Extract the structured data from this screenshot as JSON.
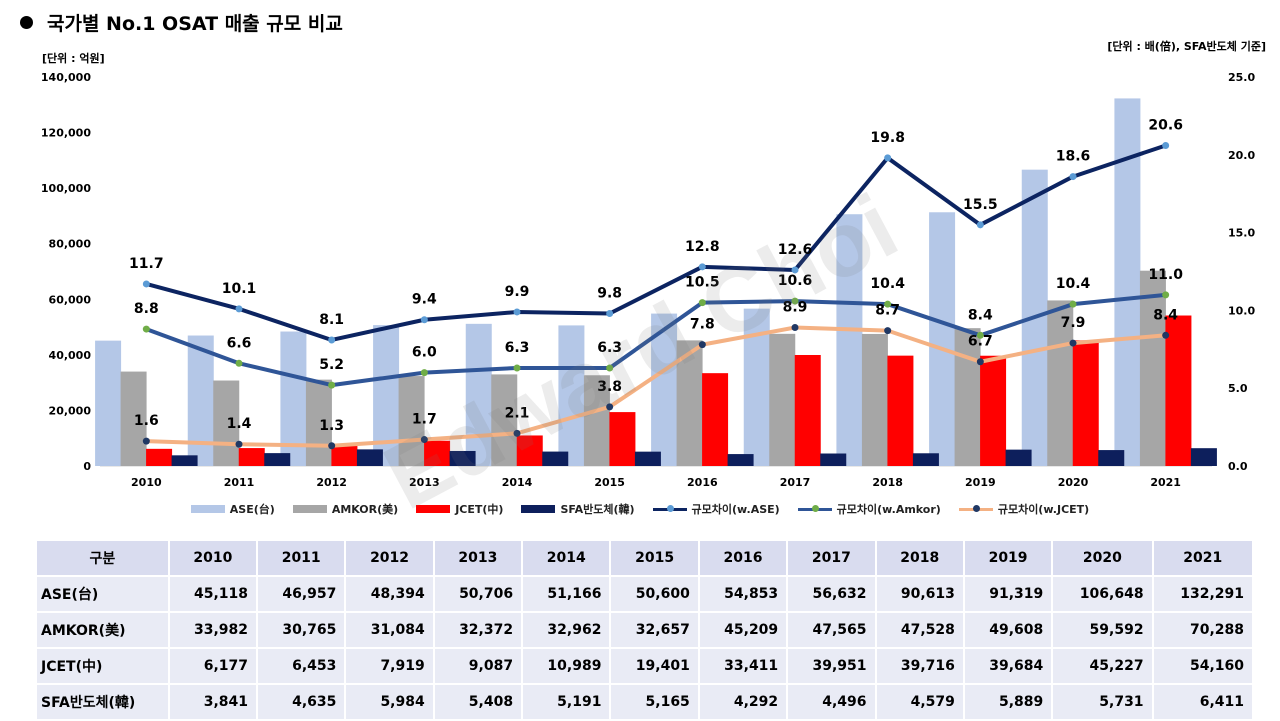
{
  "header": {
    "title": "국가별 No.1 OSAT 매출 규모 비교",
    "unit_left": "[단위 : 억원]",
    "unit_right": "[단위 : 배(倍), SFA반도체 기준]",
    "watermark": "Edward Choi"
  },
  "colors": {
    "ase": "#b4c7e7",
    "amkor": "#a6a6a6",
    "jcet": "#ff0000",
    "sfa": "#0d1f5c",
    "ratio_ase": "#0c2461",
    "ratio_amkor": "#2f5597",
    "ratio_jcet": "#f4b183",
    "marker_ase": "#5b9bd5",
    "marker_amkor": "#70ad47",
    "marker_jcet": "#203864"
  },
  "chart_data": {
    "type": "bar",
    "categories": [
      "2010",
      "2011",
      "2012",
      "2013",
      "2014",
      "2015",
      "2016",
      "2017",
      "2018",
      "2019",
      "2020",
      "2021"
    ],
    "y_left": {
      "min": 0,
      "max": 140000,
      "ticks": [
        "0",
        "20,000",
        "40,000",
        "60,000",
        "80,000",
        "100,000",
        "120,000",
        "140,000"
      ]
    },
    "y_right": {
      "min": 0,
      "max": 25,
      "ticks": [
        "0.0",
        "5.0",
        "10.0",
        "15.0",
        "20.0",
        "25.0"
      ]
    },
    "bar_series": [
      {
        "name": "ASE(台)",
        "values": [
          45118,
          46957,
          48394,
          50706,
          51166,
          50600,
          54853,
          56632,
          90613,
          91319,
          106648,
          132291
        ]
      },
      {
        "name": "AMKOR(美)",
        "values": [
          33982,
          30765,
          31084,
          32372,
          32962,
          32657,
          45209,
          47565,
          47528,
          49608,
          59592,
          70288
        ]
      },
      {
        "name": "JCET(中)",
        "values": [
          6177,
          6453,
          7919,
          9087,
          10989,
          19401,
          33411,
          39951,
          39716,
          39684,
          45227,
          54160
        ]
      },
      {
        "name": "SFA반도체(韓)",
        "values": [
          3841,
          4635,
          5984,
          5408,
          5191,
          5165,
          4292,
          4496,
          4579,
          5889,
          5731,
          6411
        ]
      }
    ],
    "line_series": [
      {
        "name": "규모차이(w.ASE)",
        "values": [
          11.7,
          10.1,
          8.1,
          9.4,
          9.9,
          9.8,
          12.8,
          12.6,
          19.8,
          15.5,
          18.6,
          20.6
        ],
        "labels": [
          "11.7",
          "10.1",
          "8.1",
          "9.4",
          "9.9",
          "9.8",
          "12.8",
          "12.6",
          "19.8",
          "15.5",
          "18.6",
          "20.6"
        ]
      },
      {
        "name": "규모차이(w.Amkor)",
        "values": [
          8.8,
          6.6,
          5.2,
          6.0,
          6.3,
          6.3,
          10.5,
          10.6,
          10.4,
          8.4,
          10.4,
          11.0
        ],
        "labels": [
          "8.8",
          "6.6",
          "5.2",
          "6.0",
          "6.3",
          "6.3",
          "10.5",
          "10.6",
          "10.4",
          "8.4",
          "10.4",
          "11.0"
        ]
      },
      {
        "name": "규모차이(w.JCET)",
        "values": [
          1.6,
          1.4,
          1.3,
          1.7,
          2.1,
          3.8,
          7.8,
          8.9,
          8.7,
          6.7,
          7.9,
          8.4
        ],
        "labels": [
          "1.6",
          "1.4",
          "1.3",
          "1.7",
          "2.1",
          "3.8",
          "7.8",
          "8.9",
          "8.7",
          "6.7",
          "7.9",
          "8.4"
        ]
      }
    ],
    "legend_position": "bottom"
  },
  "table": {
    "header": [
      "구분",
      "2010",
      "2011",
      "2012",
      "2013",
      "2014",
      "2015",
      "2016",
      "2017",
      "2018",
      "2019",
      "2020",
      "2021"
    ],
    "rows": [
      {
        "label": "ASE(台)",
        "cells": [
          "45,118",
          "46,957",
          "48,394",
          "50,706",
          "51,166",
          "50,600",
          "54,853",
          "56,632",
          "90,613",
          "91,319",
          "106,648",
          "132,291"
        ]
      },
      {
        "label": "AMKOR(美)",
        "cells": [
          "33,982",
          "30,765",
          "31,084",
          "32,372",
          "32,962",
          "32,657",
          "45,209",
          "47,565",
          "47,528",
          "49,608",
          "59,592",
          "70,288"
        ]
      },
      {
        "label": "JCET(中)",
        "cells": [
          "6,177",
          "6,453",
          "7,919",
          "9,087",
          "10,989",
          "19,401",
          "33,411",
          "39,951",
          "39,716",
          "39,684",
          "45,227",
          "54,160"
        ]
      },
      {
        "label": "SFA반도체(韓)",
        "cells": [
          "3,841",
          "4,635",
          "5,984",
          "5,408",
          "5,191",
          "5,165",
          "4,292",
          "4,496",
          "4,579",
          "5,889",
          "5,731",
          "6,411"
        ]
      }
    ]
  }
}
